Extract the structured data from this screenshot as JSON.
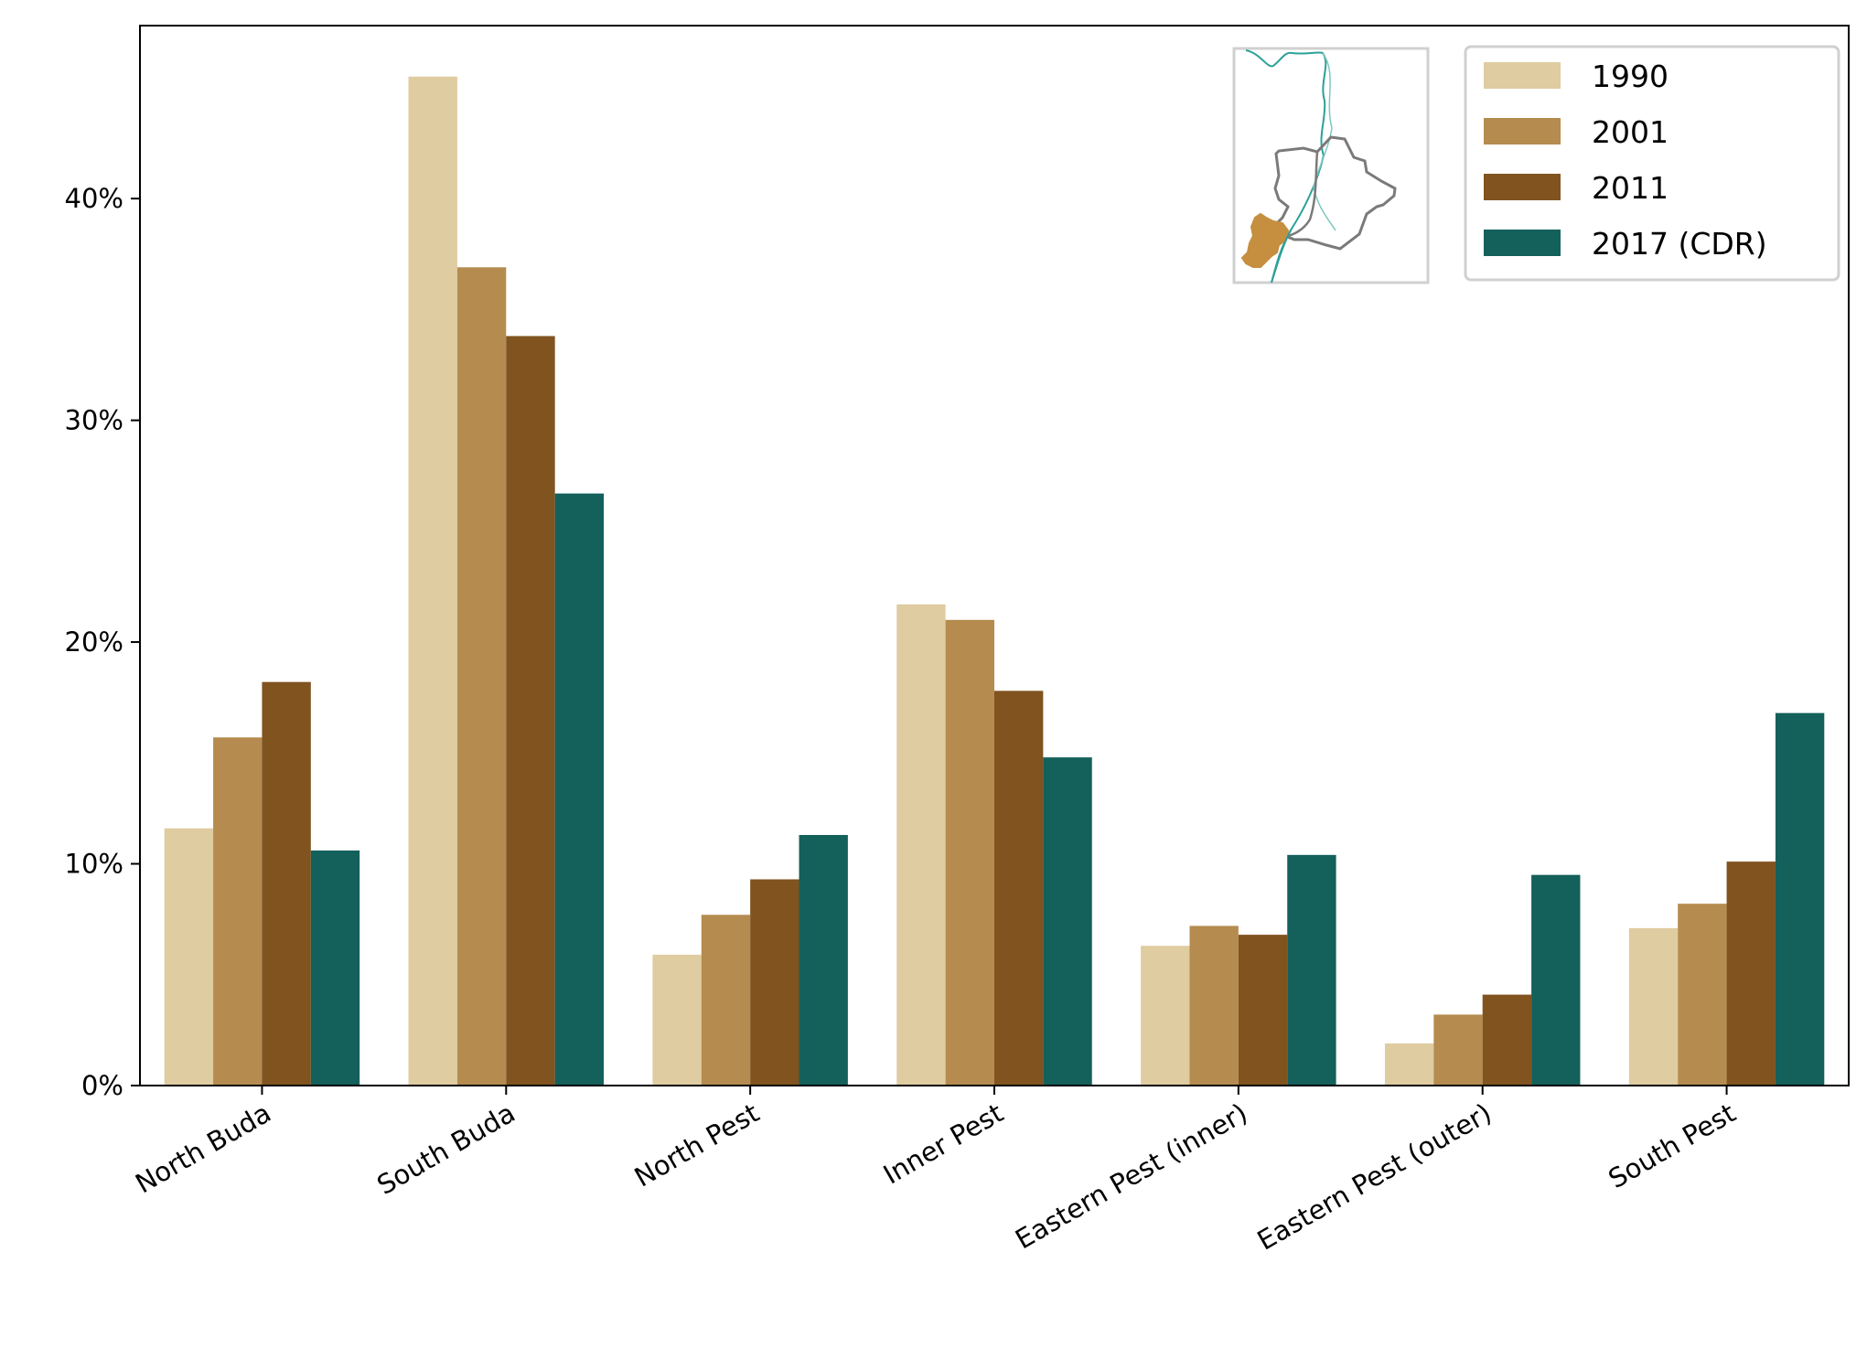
{
  "chart_data": {
    "type": "bar",
    "title": "",
    "xlabel": "",
    "ylabel": "",
    "categories": [
      "North Buda",
      "South Buda",
      "North Pest",
      "Inner Pest",
      "Eastern Pest (inner)",
      "Eastern Pest (outer)",
      "South Pest"
    ],
    "series": [
      {
        "name": "1990",
        "color": "#dfcca0",
        "values": [
          11.6,
          45.5,
          5.9,
          21.7,
          6.3,
          1.9,
          7.1
        ]
      },
      {
        "name": "2001",
        "color": "#b58b4f",
        "values": [
          15.7,
          36.9,
          7.7,
          21.0,
          7.2,
          3.2,
          8.2
        ]
      },
      {
        "name": "2011",
        "color": "#80531f",
        "values": [
          18.2,
          33.8,
          9.3,
          17.8,
          6.8,
          4.1,
          10.1
        ]
      },
      {
        "name": "2017 (CDR)",
        "color": "#14605b",
        "values": [
          10.6,
          26.7,
          11.3,
          14.8,
          10.4,
          9.5,
          16.8
        ]
      }
    ],
    "ylim": [
      0,
      47.8
    ],
    "yticks": [
      0,
      10,
      20,
      30,
      40
    ],
    "ytick_labels": [
      "0%",
      "10%",
      "20%",
      "30%",
      "40%"
    ],
    "grid": false,
    "legend_position": "top-right",
    "inset": {
      "description_icon": "budapest-district-map-icon",
      "highlight_color": "#c58f3f",
      "river_color": "#2aa198",
      "boundary_color": "#808080"
    }
  }
}
